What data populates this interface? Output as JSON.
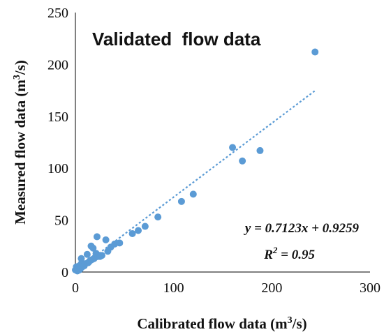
{
  "chart_data": {
    "type": "scatter",
    "title": "Validated  flow data",
    "xlabel": "Calibrated flow data (m³/s)",
    "ylabel": "Measured flow data (m³/s)",
    "xlim": [
      0,
      300
    ],
    "ylim": [
      0,
      250
    ],
    "xticks": [
      "0",
      "100",
      "200",
      "300"
    ],
    "yticks": [
      "0",
      "50",
      "100",
      "150",
      "200",
      "250"
    ],
    "grid": false,
    "marker_color": "#5b9bd5",
    "trendline_color": "#5b9bd5",
    "trendline": {
      "slope": 0.7123,
      "intercept": 0.9259,
      "x_range": [
        0,
        244
      ]
    },
    "equation": "y = 0.7123x + 0.9259",
    "r2_label": "R",
    "r2_sup": "2",
    "r2_value": " = 0.95",
    "points": [
      [
        0,
        2
      ],
      [
        1,
        3
      ],
      [
        2,
        1
      ],
      [
        1,
        5
      ],
      [
        3,
        4
      ],
      [
        4,
        2
      ],
      [
        4,
        6
      ],
      [
        5,
        3
      ],
      [
        6,
        13
      ],
      [
        6,
        8
      ],
      [
        7,
        5
      ],
      [
        9,
        6
      ],
      [
        10,
        8
      ],
      [
        12,
        17
      ],
      [
        13,
        9
      ],
      [
        14,
        10
      ],
      [
        15,
        11
      ],
      [
        16,
        25
      ],
      [
        17,
        12
      ],
      [
        18,
        23
      ],
      [
        19,
        13
      ],
      [
        20,
        14
      ],
      [
        21,
        18
      ],
      [
        22,
        34
      ],
      [
        23,
        15
      ],
      [
        25,
        15
      ],
      [
        27,
        16
      ],
      [
        31,
        31
      ],
      [
        33,
        20
      ],
      [
        36,
        24
      ],
      [
        40,
        27
      ],
      [
        45,
        28
      ],
      [
        58,
        37
      ],
      [
        64,
        40
      ],
      [
        71,
        44
      ],
      [
        84,
        53
      ],
      [
        108,
        68
      ],
      [
        120,
        75
      ],
      [
        160,
        120
      ],
      [
        170,
        107
      ],
      [
        188,
        117
      ],
      [
        244,
        212
      ]
    ]
  }
}
